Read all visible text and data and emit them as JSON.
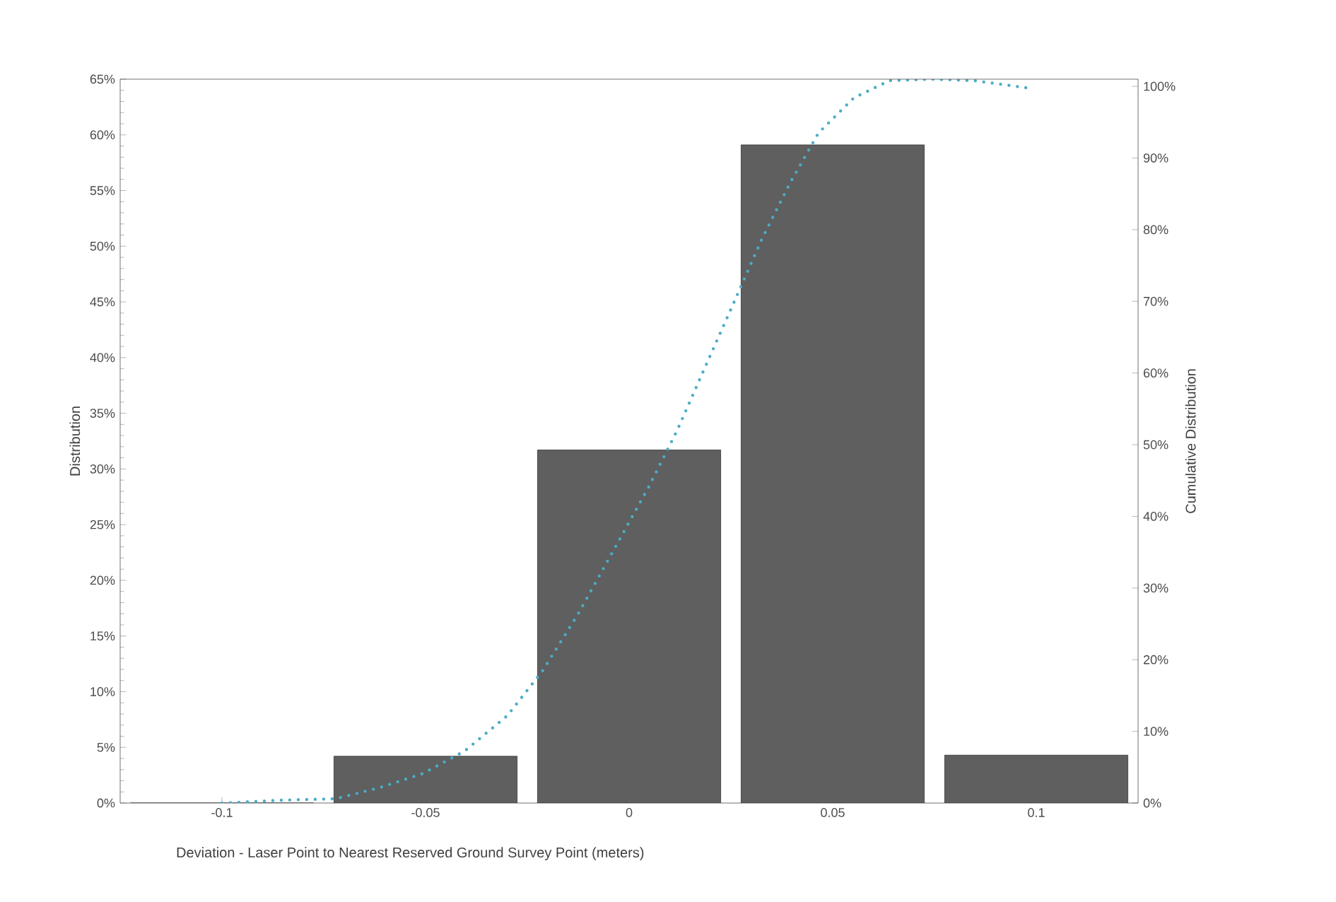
{
  "chart_data": {
    "type": "bar",
    "xlabel": "Deviation - Laser Point to Nearest Reserved Ground Survey Point (meters)",
    "ylabel": "Distribution",
    "y2label": "Cumulative Distribution",
    "x": [
      -0.1,
      -0.05,
      0,
      0.05,
      0.1
    ],
    "xlim": [
      -0.125,
      0.125
    ],
    "xticks": [
      -0.1,
      -0.05,
      0,
      0.05,
      0.1
    ],
    "ylim": [
      0,
      65
    ],
    "yticks": [
      {
        "value": 0,
        "label": "0%"
      },
      {
        "value": 5,
        "label": "5%"
      },
      {
        "value": 10,
        "label": "10%"
      },
      {
        "value": 15,
        "label": "15%"
      },
      {
        "value": 20,
        "label": "20%"
      },
      {
        "value": 25,
        "label": "25%"
      },
      {
        "value": 30,
        "label": "30%"
      },
      {
        "value": 35,
        "label": "35%"
      },
      {
        "value": 40,
        "label": "40%"
      },
      {
        "value": 45,
        "label": "45%"
      },
      {
        "value": 50,
        "label": "50%"
      },
      {
        "value": 55,
        "label": "55%"
      },
      {
        "value": 60,
        "label": "60%"
      },
      {
        "value": 65,
        "label": "65%"
      }
    ],
    "y2lim": [
      0,
      101
    ],
    "y2ticks": [
      {
        "value": 0,
        "label": "0%"
      },
      {
        "value": 10,
        "label": "10%"
      },
      {
        "value": 20,
        "label": "20%"
      },
      {
        "value": 30,
        "label": "30%"
      },
      {
        "value": 40,
        "label": "40%"
      },
      {
        "value": 50,
        "label": "50%"
      },
      {
        "value": 60,
        "label": "60%"
      },
      {
        "value": 70,
        "label": "70%"
      },
      {
        "value": 80,
        "label": "80%"
      },
      {
        "value": 90,
        "label": "90%"
      },
      {
        "value": 100,
        "label": "100%"
      }
    ],
    "series": [
      {
        "color": "#5f5f5f",
        "values": [
          0,
          4.2,
          31.7,
          59.1,
          4.3
        ]
      },
      {
        "type": "line",
        "axis": "y2",
        "color": "#4bacc6",
        "line_style": "dotted",
        "marker": "none",
        "x": [
          -0.1,
          -0.0854,
          -0.072,
          -0.061,
          -0.0507,
          -0.0403,
          -0.0299,
          -0.0212,
          -0.0125,
          -0.0038,
          0.0049,
          0.0118,
          0.0188,
          0.0257,
          0.0326,
          0.0396,
          0.0465,
          0.0552,
          0.0639,
          0.0743,
          0.0847,
          0.0976
        ],
        "values": [
          0,
          0.4,
          0.6,
          2.2,
          4.1,
          7.3,
          12.2,
          18.5,
          26.4,
          35.3,
          44.2,
          52,
          61,
          69.8,
          78.7,
          86.6,
          93.5,
          98.4,
          100.8,
          101,
          100.8,
          99.8
        ]
      }
    ],
    "legend": false
  }
}
